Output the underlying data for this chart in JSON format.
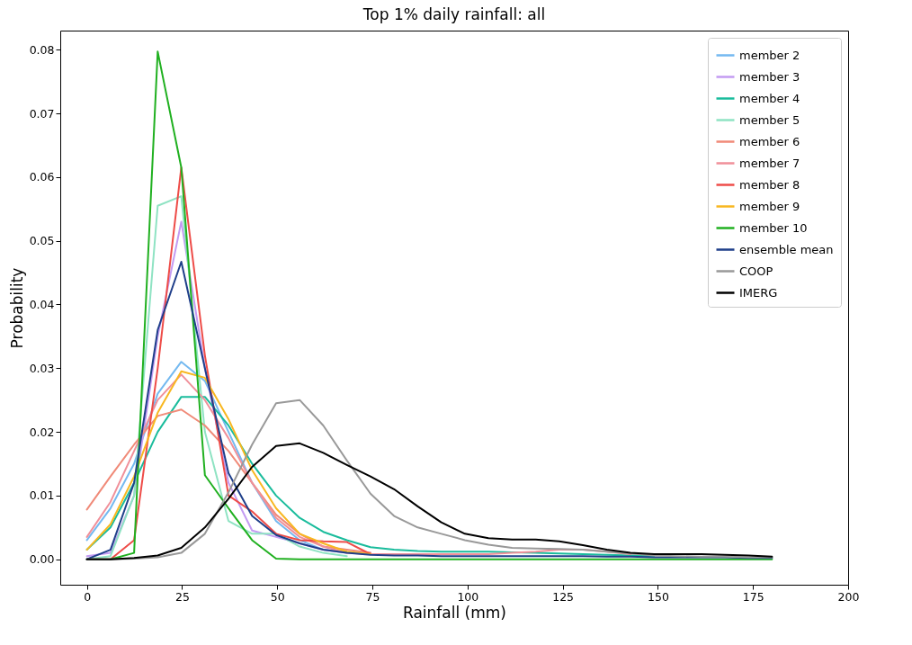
{
  "chart_data": {
    "type": "line",
    "title": "Top 1% daily rainfall: all",
    "xlabel": "Rainfall (mm)",
    "ylabel": "Probability",
    "x": [
      0,
      6.2,
      12.4,
      18.6,
      24.8,
      31,
      37.2,
      43.4,
      49.7,
      55.9,
      62.1,
      68.3,
      74.5,
      80.7,
      86.9,
      93.1,
      99.3,
      105.5,
      111.7,
      117.9,
      124.1,
      130.3,
      136.6,
      142.8,
      149,
      155.2,
      161.4,
      167.6,
      173.8,
      180
    ],
    "xlim": [
      -7,
      200
    ],
    "xticks": [
      0,
      25,
      50,
      75,
      100,
      125,
      150,
      175,
      200
    ],
    "ylim": [
      -0.004,
      0.083
    ],
    "yticks": [
      {
        "value": 0,
        "label": "0.00"
      },
      {
        "value": 0.01,
        "label": "0.01"
      },
      {
        "value": 0.02,
        "label": "0.02"
      },
      {
        "value": 0.03,
        "label": "0.03"
      },
      {
        "value": 0.04,
        "label": "0.04"
      },
      {
        "value": 0.05,
        "label": "0.05"
      },
      {
        "value": 0.06,
        "label": "0.06"
      },
      {
        "value": 0.07,
        "label": "0.07"
      },
      {
        "value": 0.08,
        "label": "0.08"
      }
    ],
    "grid": false,
    "legend": "top right",
    "marker": "none",
    "line_style": "solid",
    "series": [
      {
        "name": "member 2",
        "color": "#74b9f0",
        "values": [
          0.003,
          0.008,
          0.015,
          0.026,
          0.031,
          0.028,
          0.02,
          0.012,
          0.006,
          0.003,
          0.0015,
          0.001,
          null,
          null,
          null,
          null,
          null,
          null,
          null,
          null,
          null,
          null,
          null,
          null,
          null,
          null,
          null,
          null,
          null,
          null
        ]
      },
      {
        "name": "member 3",
        "color": "#c39bf2",
        "values": [
          0.0005,
          0.001,
          0.01,
          0.035,
          0.053,
          0.03,
          0.012,
          0.0045,
          0.0035,
          0.0025,
          0.0015,
          0.001,
          0.001,
          null,
          null,
          null,
          null,
          null,
          null,
          null,
          null,
          null,
          null,
          null,
          null,
          null,
          null,
          null,
          null,
          null
        ]
      },
      {
        "name": "member 4",
        "color": "#1abc9c",
        "values": [
          0.0015,
          0.005,
          0.012,
          0.02,
          0.0255,
          0.0255,
          0.021,
          0.015,
          0.01,
          0.0065,
          0.0043,
          0.003,
          0.0019,
          0.0015,
          0.0013,
          0.0012,
          0.0012,
          0.0012,
          0.0011,
          0.001,
          0.0009,
          0.0008,
          0.0007,
          0.0006,
          0.0005,
          null,
          null,
          null,
          null,
          null
        ]
      },
      {
        "name": "member 5",
        "color": "#8fe3c3",
        "values": [
          0,
          0.0005,
          0.01,
          0.0555,
          0.057,
          0.02,
          0.006,
          0.004,
          0.004,
          0.002,
          0.001,
          0.0005,
          null,
          null,
          null,
          null,
          null,
          null,
          null,
          null,
          null,
          null,
          null,
          null,
          null,
          null,
          null,
          null,
          null,
          null
        ]
      },
      {
        "name": "member 6",
        "color": "#f08a78",
        "values": [
          0.0078,
          0.013,
          0.018,
          0.0225,
          0.0235,
          0.021,
          0.017,
          0.012,
          0.007,
          0.004,
          0.002,
          0.0015,
          0.001,
          null,
          null,
          null,
          null,
          null,
          null,
          null,
          null,
          null,
          null,
          null,
          null,
          null,
          null,
          null,
          null,
          null
        ]
      },
      {
        "name": "member 7",
        "color": "#f0909a",
        "values": [
          0.0035,
          0.009,
          0.017,
          0.025,
          0.029,
          0.025,
          0.019,
          0.012,
          0.0065,
          0.0035,
          0.002,
          0.001,
          0.0008,
          0.0008,
          0.0008,
          0.0008,
          0.0008,
          0.0008,
          0.001,
          0.0012,
          0.0015,
          0.0015,
          0.0012,
          0.0008,
          null,
          null,
          null,
          null,
          null,
          null
        ]
      },
      {
        "name": "member 8",
        "color": "#ee4c48",
        "values": [
          0,
          0,
          0.003,
          0.03,
          0.0615,
          0.032,
          0.01,
          0.0075,
          0.004,
          0.003,
          0.0028,
          0.0027,
          0.0008,
          null,
          null,
          null,
          null,
          null,
          null,
          null,
          null,
          null,
          null,
          null,
          null,
          null,
          null,
          null,
          null,
          null
        ]
      },
      {
        "name": "member 9",
        "color": "#f8b720",
        "values": [
          0.0015,
          0.0055,
          0.013,
          0.023,
          0.0295,
          0.0285,
          0.022,
          0.014,
          0.008,
          0.004,
          0.0025,
          0.0012,
          0.0008,
          null,
          null,
          null,
          null,
          null,
          null,
          null,
          null,
          null,
          null,
          null,
          null,
          null,
          null,
          null,
          null,
          null
        ]
      },
      {
        "name": "member 10",
        "color": "#20b020",
        "values": [
          0,
          0,
          0.001,
          0.0797,
          0.0615,
          0.0132,
          0.008,
          0.003,
          0.0001,
          0,
          0,
          0,
          0,
          0,
          0,
          0,
          0,
          0,
          0,
          0,
          0,
          0,
          0,
          0,
          0,
          0,
          0,
          0,
          0,
          0
        ]
      },
      {
        "name": "ensemble mean",
        "color": "#1f3f8a",
        "values": [
          0,
          0.0015,
          0.012,
          0.036,
          0.0467,
          0.03,
          0.0135,
          0.0068,
          0.0038,
          0.0025,
          0.0015,
          0.001,
          0.0007,
          0.0006,
          0.0006,
          0.0005,
          0.0005,
          0.0005,
          0.0005,
          0.0005,
          0.0005,
          0.0005,
          0.0004,
          0.0004,
          0.0003,
          0.0003,
          0.0003,
          0.0003,
          0.0002,
          0.0002
        ]
      },
      {
        "name": "COOP",
        "color": "#999999",
        "values": [
          0,
          0,
          0.0001,
          0.0003,
          0.001,
          0.004,
          0.0105,
          0.018,
          0.0245,
          0.025,
          0.021,
          0.0155,
          0.0103,
          0.0068,
          0.005,
          0.004,
          0.003,
          0.0023,
          0.0018,
          0.0017,
          0.0016,
          0.0015,
          0.0012,
          0.0009,
          0.0006,
          0.0005,
          0.0004,
          0.0004,
          0.0003,
          0.0003
        ]
      },
      {
        "name": "IMERG",
        "color": "#000000",
        "values": [
          0,
          0,
          0.0002,
          0.0006,
          0.0018,
          0.005,
          0.0095,
          0.0145,
          0.0178,
          0.0182,
          0.0167,
          0.0148,
          0.013,
          0.011,
          0.0083,
          0.0058,
          0.004,
          0.0033,
          0.0031,
          0.0031,
          0.0028,
          0.0022,
          0.0015,
          0.001,
          0.0008,
          0.0008,
          0.0008,
          0.0007,
          0.0006,
          0.0004
        ]
      }
    ]
  }
}
